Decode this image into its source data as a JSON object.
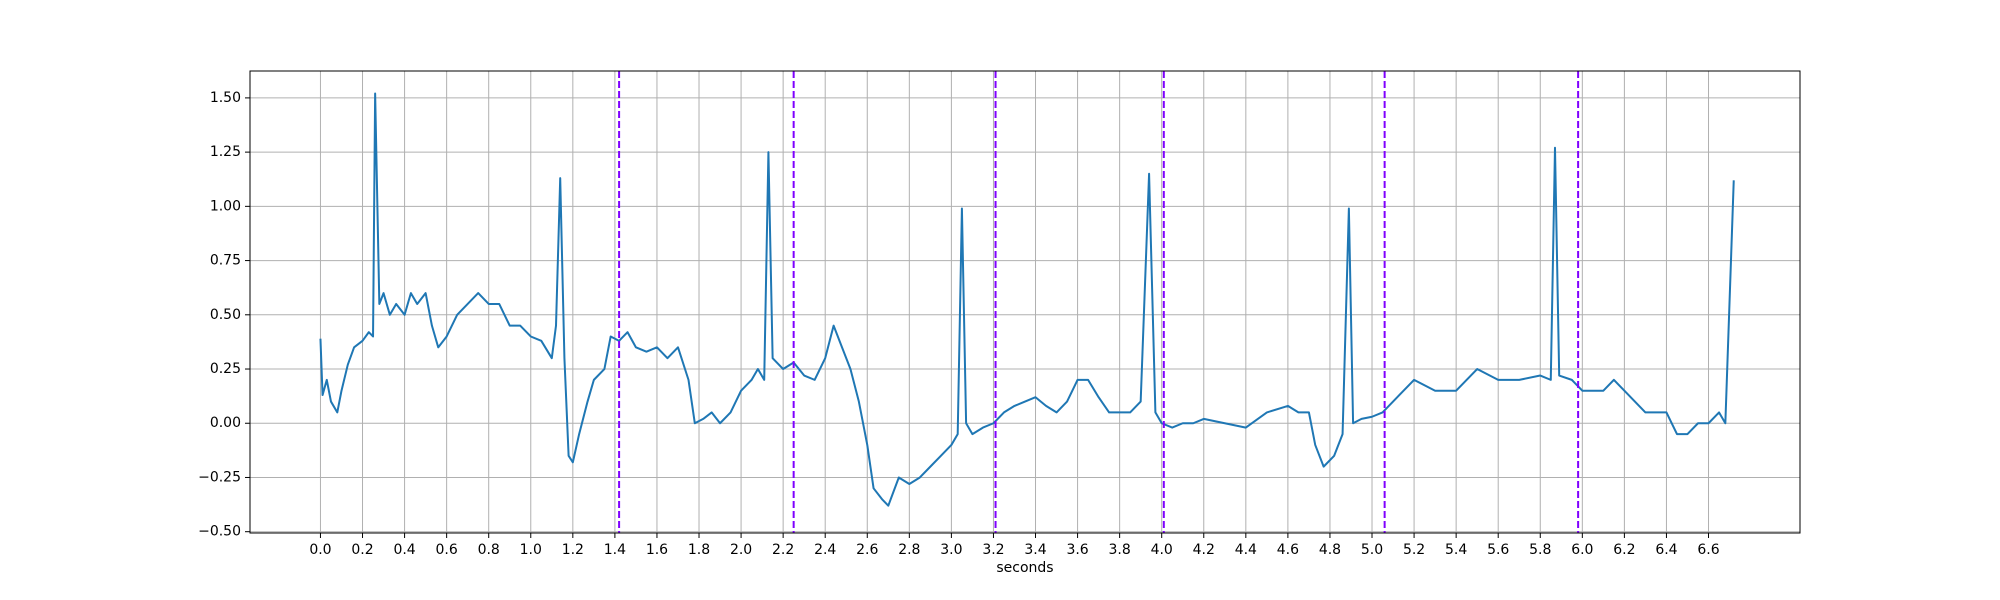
{
  "chart_data": {
    "type": "line",
    "xlabel": "seconds",
    "color": "#1f77b4",
    "grid": true,
    "xlim": [
      -0.335,
      7.035
    ],
    "ylim": [
      -0.506,
      1.624
    ],
    "xticks": [
      {
        "value": 0,
        "label": "0.0"
      },
      0.2,
      0.4,
      0.6,
      0.8,
      {
        "value": 1,
        "label": "1.0"
      },
      1.2,
      1.4,
      1.6,
      1.8,
      {
        "value": 2,
        "label": "2.0"
      },
      2.2,
      2.4,
      2.6,
      2.8,
      {
        "value": 3,
        "label": "3.0"
      },
      3.2,
      3.4,
      3.6,
      3.8,
      {
        "value": 4,
        "label": "4.0"
      },
      4.2,
      4.4,
      4.6,
      4.8,
      {
        "value": 5,
        "label": "5.0"
      },
      5.2,
      5.4,
      5.6,
      5.8,
      {
        "value": 6,
        "label": "6.0"
      },
      6.2,
      6.4,
      6.6
    ],
    "yticks": [
      {
        "value": -0.5,
        "label": "−0.50"
      },
      {
        "value": -0.25,
        "label": "−0.25"
      },
      {
        "value": 0,
        "label": "0.00"
      },
      {
        "value": 0.25,
        "label": "0.25"
      },
      {
        "value": 0.5,
        "label": "0.50"
      },
      {
        "value": 0.75,
        "label": "0.75"
      },
      {
        "value": 1,
        "label": "1.00"
      },
      {
        "value": 1.25,
        "label": "1.25"
      },
      {
        "value": 1.5,
        "label": "1.50"
      }
    ],
    "vlines": {
      "color": "#7f00ff",
      "x": [
        1.42,
        2.25,
        3.21,
        4.01,
        5.06,
        5.98
      ]
    },
    "series": [
      {
        "x": [
          0,
          0.01,
          0.03,
          0.05,
          0.08,
          0.1,
          0.13,
          0.16,
          0.2,
          0.23,
          0.25,
          0.26,
          0.28,
          0.3,
          0.33,
          0.36,
          0.4,
          0.43,
          0.46,
          0.5,
          0.53,
          0.56,
          0.6,
          0.65,
          0.7,
          0.75,
          0.8,
          0.85,
          0.9,
          0.95,
          1.0,
          1.05,
          1.1,
          1.12,
          1.14,
          1.16,
          1.18,
          1.2,
          1.23,
          1.27,
          1.3,
          1.35,
          1.38,
          1.42,
          1.46,
          1.5,
          1.55,
          1.6,
          1.65,
          1.7,
          1.75,
          1.78,
          1.82,
          1.86,
          1.9,
          1.95,
          2.0,
          2.05,
          2.08,
          2.11,
          2.13,
          2.15,
          2.2,
          2.25,
          2.3,
          2.35,
          2.4,
          2.44,
          2.48,
          2.52,
          2.56,
          2.6,
          2.63,
          2.67,
          2.7,
          2.75,
          2.8,
          2.85,
          2.9,
          2.95,
          3.0,
          3.03,
          3.05,
          3.07,
          3.1,
          3.15,
          3.2,
          3.25,
          3.3,
          3.35,
          3.4,
          3.45,
          3.5,
          3.55,
          3.6,
          3.65,
          3.7,
          3.75,
          3.8,
          3.85,
          3.9,
          3.94,
          3.97,
          4.0,
          4.05,
          4.1,
          4.15,
          4.2,
          4.3,
          4.4,
          4.5,
          4.6,
          4.65,
          4.7,
          4.73,
          4.77,
          4.82,
          4.86,
          4.89,
          4.91,
          4.95,
          5.0,
          5.05,
          5.1,
          5.15,
          5.2,
          5.3,
          5.4,
          5.5,
          5.6,
          5.7,
          5.8,
          5.85,
          5.87,
          5.89,
          5.95,
          6.0,
          6.1,
          6.15,
          6.2,
          6.3,
          6.4,
          6.45,
          6.5,
          6.55,
          6.6,
          6.65,
          6.68,
          6.72
        ],
        "values": [
          0.39,
          0.13,
          0.2,
          0.1,
          0.05,
          0.15,
          0.27,
          0.35,
          0.38,
          0.42,
          0.4,
          1.52,
          0.55,
          0.6,
          0.5,
          0.55,
          0.5,
          0.6,
          0.55,
          0.6,
          0.45,
          0.35,
          0.4,
          0.5,
          0.55,
          0.6,
          0.55,
          0.55,
          0.45,
          0.45,
          0.4,
          0.38,
          0.3,
          0.45,
          1.13,
          0.3,
          -0.15,
          -0.18,
          -0.05,
          0.1,
          0.2,
          0.25,
          0.4,
          0.38,
          0.42,
          0.35,
          0.33,
          0.35,
          0.3,
          0.35,
          0.2,
          0.0,
          0.02,
          0.05,
          0.0,
          0.05,
          0.15,
          0.2,
          0.25,
          0.2,
          1.25,
          0.3,
          0.25,
          0.28,
          0.22,
          0.2,
          0.3,
          0.45,
          0.35,
          0.25,
          0.1,
          -0.1,
          -0.3,
          -0.35,
          -0.38,
          -0.25,
          -0.28,
          -0.25,
          -0.2,
          -0.15,
          -0.1,
          -0.05,
          0.99,
          0.0,
          -0.05,
          -0.02,
          0.0,
          0.05,
          0.08,
          0.1,
          0.12,
          0.08,
          0.05,
          0.1,
          0.2,
          0.2,
          0.12,
          0.05,
          0.05,
          0.05,
          0.1,
          1.15,
          0.05,
          0.0,
          -0.02,
          0.0,
          0.0,
          0.02,
          0.0,
          -0.02,
          0.05,
          0.08,
          0.05,
          0.05,
          -0.1,
          -0.2,
          -0.15,
          -0.05,
          0.99,
          0.0,
          0.02,
          0.03,
          0.05,
          0.1,
          0.15,
          0.2,
          0.15,
          0.15,
          0.25,
          0.2,
          0.2,
          0.22,
          0.2,
          1.27,
          0.22,
          0.2,
          0.15,
          0.15,
          0.2,
          0.15,
          0.05,
          0.05,
          -0.05,
          -0.05,
          0.0,
          0.0,
          0.05,
          0.0,
          1.12
        ]
      }
    ]
  }
}
